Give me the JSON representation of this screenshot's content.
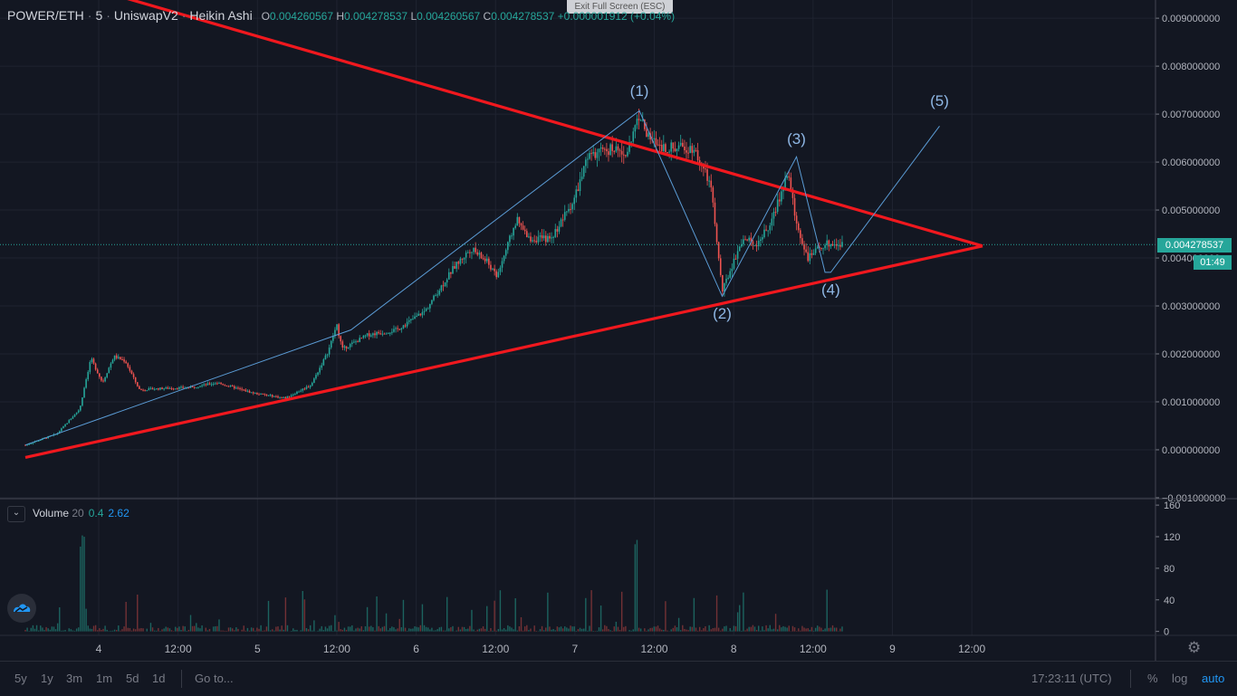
{
  "header": {
    "symbol": "POWER/ETH",
    "interval": "5",
    "exchange": "UniswapV2",
    "chart_style": "Heikin Ashi",
    "o_label": "O",
    "o_value": "0.004260567",
    "h_label": "H",
    "h_value": "0.004278537",
    "l_label": "L",
    "l_value": "0.004260567",
    "c_label": "C",
    "c_value": "0.004278537",
    "change": "+0.000001912 (+0.04%)"
  },
  "exit_fullscreen_label": "Exit Full Screen (ESC)",
  "current_price": "0.004278537",
  "countdown": "01:49",
  "volume_legend": {
    "caret": "⌄",
    "name": "Volume",
    "length": "20",
    "v1": "0.4",
    "v2": "2.62"
  },
  "bottom_bar": {
    "ranges": [
      "5y",
      "1y",
      "3m",
      "1m",
      "5d",
      "1d"
    ],
    "goto": "Go to...",
    "clock": "17:23:11 (UTC)",
    "percent": "%",
    "log": "log",
    "auto": "auto"
  },
  "colors": {
    "background": "#131722",
    "up": "#26a69a",
    "down": "#ef5350",
    "trendline": "#f0181e",
    "wave": "#5b9cd6"
  },
  "chart_data": {
    "type": "candlestick",
    "y_ticks": [
      "0.009000000",
      "0.008000000",
      "0.007000000",
      "0.006000000",
      "0.005000000",
      "0.004000000",
      "0.003000000",
      "0.002000000",
      "0.001000000",
      "0.000000000",
      "−0.001000000"
    ],
    "x_ticks": [
      "4",
      "12:00",
      "5",
      "12:00",
      "6",
      "12:00",
      "7",
      "12:00",
      "8",
      "12:00",
      "9",
      "12:00"
    ],
    "ylim": [
      -0.00102,
      0.00938
    ],
    "price_path": [
      [
        0,
        0.0001
      ],
      [
        0.55,
        0.00033
      ],
      [
        0.95,
        0.00085
      ],
      [
        1.15,
        0.0019
      ],
      [
        1.35,
        0.0014
      ],
      [
        1.55,
        0.00195
      ],
      [
        1.75,
        0.00185
      ],
      [
        1.9,
        0.00148
      ],
      [
        2.0,
        0.00125
      ],
      [
        2.4,
        0.00128
      ],
      [
        2.9,
        0.0013
      ],
      [
        3.35,
        0.0014
      ],
      [
        4.0,
        0.00118
      ],
      [
        4.55,
        0.00108
      ],
      [
        5.0,
        0.00135
      ],
      [
        5.3,
        0.00205
      ],
      [
        5.45,
        0.0026
      ],
      [
        5.55,
        0.0021
      ],
      [
        6.0,
        0.0024
      ],
      [
        6.5,
        0.0025
      ],
      [
        7.0,
        0.0029
      ],
      [
        7.5,
        0.0038
      ],
      [
        7.8,
        0.0042
      ],
      [
        8.1,
        0.0039
      ],
      [
        8.25,
        0.0036
      ],
      [
        8.6,
        0.0048
      ],
      [
        8.8,
        0.0044
      ],
      [
        9.2,
        0.0044
      ],
      [
        9.6,
        0.0052
      ],
      [
        9.85,
        0.0061
      ],
      [
        10.3,
        0.0063
      ],
      [
        10.5,
        0.0061
      ],
      [
        10.75,
        0.007
      ],
      [
        10.9,
        0.0065
      ],
      [
        11.2,
        0.0063
      ],
      [
        11.7,
        0.0063
      ],
      [
        12.0,
        0.0055
      ],
      [
        12.2,
        0.0033
      ],
      [
        12.55,
        0.0044
      ],
      [
        12.8,
        0.0043
      ],
      [
        13.05,
        0.0047
      ],
      [
        13.35,
        0.0058
      ],
      [
        13.5,
        0.0047
      ],
      [
        13.7,
        0.004
      ],
      [
        14.0,
        0.0043
      ],
      [
        14.3,
        0.00428
      ]
    ],
    "volume_axis": [
      "160",
      "120",
      "80",
      "40",
      "0"
    ],
    "volume_ylim": [
      -5,
      167
    ],
    "annotations": {
      "trendline_upper": [
        [
          -0.8,
          0.0103
        ],
        [
          14.0,
          0.00425
        ]
      ],
      "trendline_lower": [
        [
          0.0,
          -0.00016
        ],
        [
          14.0,
          0.00425
        ]
      ],
      "wave_path": [
        [
          0.0,
          0.0001
        ],
        [
          5.7,
          0.0025
        ],
        [
          10.75,
          0.00707
        ],
        [
          12.2,
          0.0032
        ],
        [
          13.5,
          0.00611
        ],
        [
          14.0,
          0.0037
        ],
        [
          14.1,
          0.0037
        ],
        [
          16.45,
          0.00675
        ]
      ],
      "wave_labels": [
        {
          "text": "(1)",
          "x": 10.75,
          "y": 0.0073,
          "pos": "above"
        },
        {
          "text": "(2)",
          "x": 12.2,
          "y": 0.003,
          "pos": "below"
        },
        {
          "text": "(3)",
          "x": 13.5,
          "y": 0.0063,
          "pos": "above"
        },
        {
          "text": "(4)",
          "x": 14.1,
          "y": 0.0035,
          "pos": "below"
        },
        {
          "text": "(5)",
          "x": 16.45,
          "y": 0.0071,
          "pos": "above"
        }
      ]
    }
  }
}
